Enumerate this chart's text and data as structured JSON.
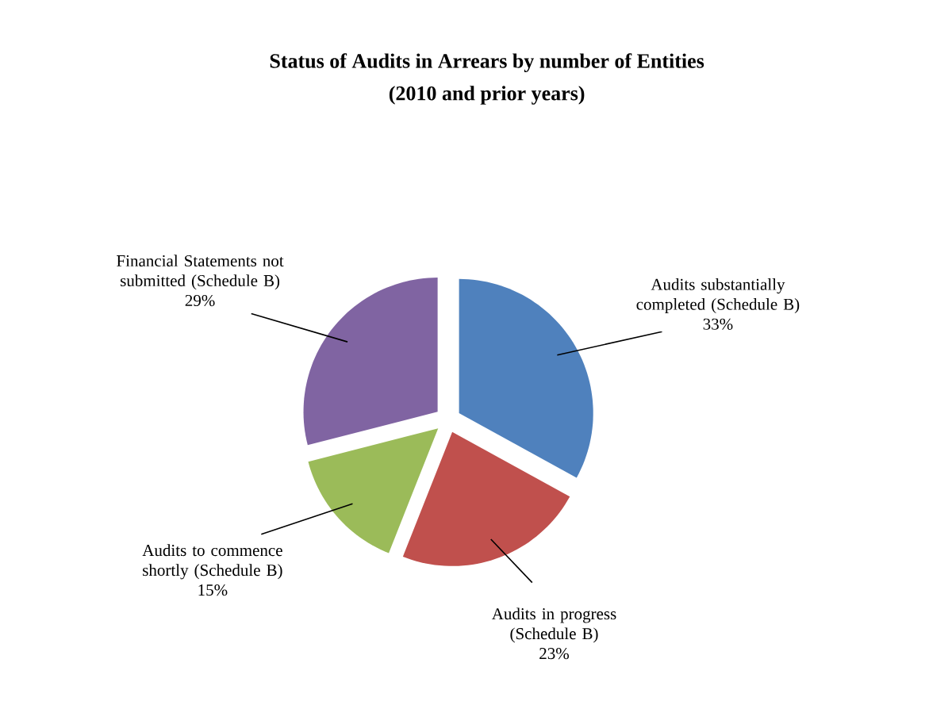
{
  "chart_data": {
    "type": "pie",
    "title": "Status of Audits in Arrears by number of Entities",
    "subtitle": "(2010 and prior years)",
    "categories": [
      "Audits substantially completed (Schedule B)",
      "Audits in progress (Schedule B)",
      "Audits to commence shortly (Schedule B)",
      "Financial Statements not submitted (Schedule B)"
    ],
    "values": [
      33,
      23,
      15,
      29
    ],
    "colors": [
      "#4f81bd",
      "#c0504d",
      "#9bbb59",
      "#8064a2"
    ],
    "value_labels": [
      "33%",
      "23%",
      "15%",
      "29%"
    ]
  }
}
